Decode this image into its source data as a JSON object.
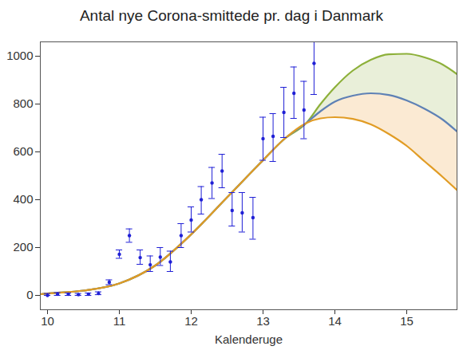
{
  "chart_data": {
    "type": "line",
    "title": "Antal nye Corona-smittede pr. dag i Danmark",
    "x_label": "Kalenderuge",
    "xlim": [
      9.9,
      15.7
    ],
    "xticks": [
      10,
      11,
      12,
      13,
      14,
      15
    ],
    "ylim": [
      -60,
      1060
    ],
    "yticks": [
      0,
      200,
      400,
      600,
      800,
      1000
    ],
    "grid": false,
    "series": [
      {
        "type": "scatter",
        "color": "#1f1fd6",
        "marker": "circle",
        "x": [
          10,
          10.14,
          10.29,
          10.43,
          10.57,
          10.71,
          10.86,
          11,
          11.14,
          11.29,
          11.43,
          11.57,
          11.71,
          11.86,
          12,
          12.14,
          12.29,
          12.43,
          12.57,
          12.71,
          12.86,
          13,
          13.14,
          13.29,
          13.43,
          13.57,
          13.71
        ],
        "values": [
          0,
          5,
          5,
          3,
          5,
          8,
          55,
          172,
          250,
          158,
          128,
          160,
          140,
          250,
          315,
          400,
          470,
          520,
          355,
          345,
          325,
          655,
          665,
          765,
          845,
          775,
          970
        ],
        "lower": [
          0,
          0,
          0,
          0,
          0,
          3,
          45,
          155,
          222,
          130,
          100,
          125,
          100,
          200,
          265,
          340,
          405,
          450,
          290,
          265,
          235,
          565,
          560,
          660,
          740,
          655,
          840
        ],
        "upper": [
          8,
          12,
          10,
          8,
          10,
          15,
          65,
          190,
          278,
          190,
          165,
          200,
          185,
          300,
          370,
          455,
          535,
          590,
          430,
          430,
          410,
          745,
          760,
          870,
          955,
          895,
          1080
        ]
      },
      {
        "type": "line",
        "color": "#8db03a",
        "line_style": "solid",
        "x": [
          9.9,
          10,
          10.5,
          11,
          11.5,
          12,
          12.5,
          13,
          13.3,
          13.6,
          13.8,
          14,
          14.25,
          14.5,
          14.75,
          15,
          15.25,
          15.5,
          15.7
        ],
        "values": [
          5,
          8,
          20,
          50,
          125,
          255,
          410,
          565,
          655,
          720,
          800,
          870,
          940,
          985,
          1008,
          1010,
          995,
          965,
          925
        ]
      },
      {
        "type": "line",
        "color": "#5e81b5",
        "line_style": "solid",
        "x": [
          9.9,
          10,
          10.5,
          11,
          11.5,
          12,
          12.5,
          13,
          13.3,
          13.6,
          13.8,
          14,
          14.25,
          14.5,
          14.75,
          15,
          15.25,
          15.5,
          15.7
        ],
        "values": [
          5,
          8,
          20,
          50,
          125,
          255,
          410,
          565,
          655,
          720,
          770,
          810,
          835,
          845,
          838,
          815,
          780,
          735,
          685
        ]
      },
      {
        "type": "line",
        "color": "#e19c24",
        "line_style": "solid",
        "x": [
          9.9,
          10,
          10.5,
          11,
          11.5,
          12,
          12.5,
          13,
          13.3,
          13.6,
          13.8,
          14,
          14.25,
          14.5,
          14.75,
          15,
          15.25,
          15.5,
          15.7
        ],
        "values": [
          5,
          8,
          20,
          50,
          125,
          255,
          410,
          565,
          655,
          720,
          740,
          745,
          738,
          715,
          675,
          625,
          560,
          495,
          440
        ]
      }
    ],
    "bands": [
      {
        "between": [
          1,
          2
        ],
        "color": "#e9efd9"
      },
      {
        "between": [
          2,
          3
        ],
        "color": "#fbead3"
      }
    ]
  }
}
